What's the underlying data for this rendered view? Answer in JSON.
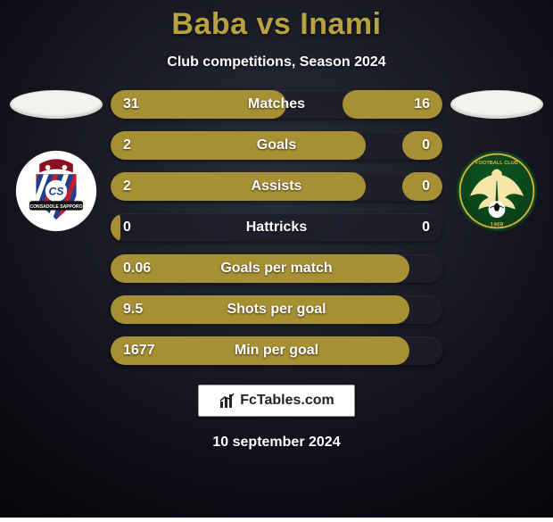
{
  "background": {
    "top_color": "#2a2d3a",
    "bottom_color": "#0f0f18",
    "vignette_color": "#05050a"
  },
  "title": {
    "text": "Baba vs Inami",
    "color": "#b8a23f",
    "fontsize": 34
  },
  "subtitle": {
    "text": "Club competitions, Season 2024",
    "fontsize": 16
  },
  "bar_style": {
    "height": 32,
    "track_color": "rgba(30,30,42,0.78)",
    "fill_color": "#a78f33",
    "label_fontsize": 16,
    "text_color": "#ffffff"
  },
  "left_badge": {
    "circle_bg": "#ffffff",
    "shield_bg1": "#c41e2a",
    "shield_bg2": "#1d3f8c",
    "shield_stripe": "#ffffff",
    "banner": "#111111",
    "banner_text": "CONSADOLE SAPPORO"
  },
  "right_badge": {
    "circle_bg1": "#0e5a20",
    "circle_bg2": "#0a3b16",
    "inner_border": "#d4b03c",
    "wing_color": "#f5e6a8",
    "ball_color": "#ffffff"
  },
  "stats": [
    {
      "label": "Matches",
      "left_text": "31",
      "right_text": "16",
      "left_pct": 53,
      "right_pct": 30,
      "show_right_fill": true
    },
    {
      "label": "Goals",
      "left_text": "2",
      "right_text": "0",
      "left_pct": 77,
      "right_pct": 12,
      "show_right_fill": true
    },
    {
      "label": "Assists",
      "left_text": "2",
      "right_text": "0",
      "left_pct": 77,
      "right_pct": 12,
      "show_right_fill": true
    },
    {
      "label": "Hattricks",
      "left_text": "0",
      "right_text": "0",
      "left_pct": 3,
      "right_pct": 3,
      "show_right_fill": false
    },
    {
      "label": "Goals per match",
      "left_text": "0.06",
      "right_text": "",
      "left_pct": 90,
      "right_pct": 0,
      "show_right_fill": false
    },
    {
      "label": "Shots per goal",
      "left_text": "9.5",
      "right_text": "",
      "left_pct": 90,
      "right_pct": 0,
      "show_right_fill": false
    },
    {
      "label": "Min per goal",
      "left_text": "1677",
      "right_text": "",
      "left_pct": 90,
      "right_pct": 0,
      "show_right_fill": false
    }
  ],
  "footer": {
    "brand": "FcTables.com"
  },
  "date": "10 september 2024"
}
